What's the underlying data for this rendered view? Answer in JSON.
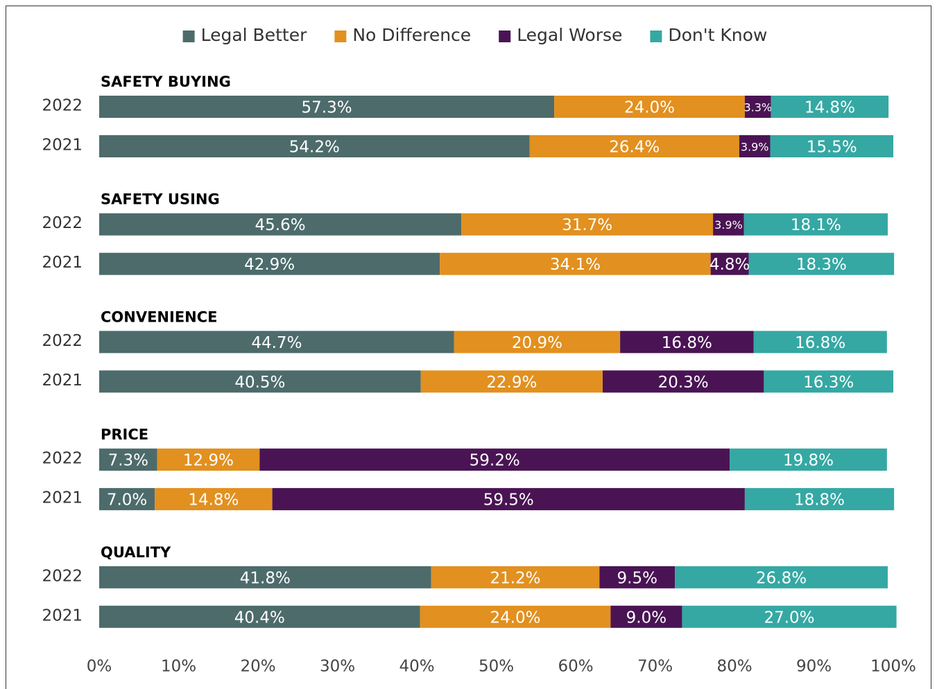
{
  "chart_data": {
    "type": "stacked-bar-horizontal",
    "groups": [
      "SAFETY BUYING",
      "SAFETY USING",
      "CONVENIENCE",
      "PRICE",
      "QUALITY"
    ],
    "categories": [
      "2022",
      "2021",
      "2022",
      "2021",
      "2022",
      "2021",
      "2022",
      "2021",
      "2022",
      "2021"
    ],
    "series": [
      {
        "name": "Legal Better",
        "color": "#4d6b6b",
        "values": [
          57.3,
          54.2,
          45.6,
          42.9,
          44.7,
          40.5,
          7.3,
          7.0,
          41.8,
          40.4
        ],
        "value_labels": [
          "57.3%",
          "54.2%",
          "45.6%",
          "42.9%",
          "44.7%",
          "40.5%",
          "7.3%",
          "7.0%",
          "41.8%",
          "40.4%"
        ]
      },
      {
        "name": "No Difference",
        "color": "#e2901f",
        "values": [
          24.0,
          26.4,
          31.7,
          34.1,
          20.9,
          22.9,
          12.9,
          14.8,
          21.2,
          24.0
        ],
        "value_labels": [
          "24.0%",
          "26.4%",
          "31.7%",
          "34.1%",
          "20.9%",
          "22.9%",
          "12.9%",
          "14.8%",
          "21.2%",
          "24.0%"
        ]
      },
      {
        "name": "Legal Worse",
        "color": "#4a1454",
        "values": [
          3.3,
          3.9,
          3.9,
          4.8,
          16.8,
          20.3,
          59.2,
          59.5,
          9.5,
          9.0
        ],
        "value_labels": [
          "3.3%",
          "3.9%",
          "3.9%",
          "4.8%",
          "16.8%",
          "20.3%",
          "59.2%",
          "59.5%",
          "9.5%",
          "9.0%"
        ]
      },
      {
        "name": "Don't Know",
        "color": "#35a8a3",
        "values": [
          14.8,
          15.5,
          18.1,
          18.3,
          16.8,
          16.3,
          19.8,
          18.8,
          26.8,
          27.0
        ],
        "value_labels": [
          "14.8%",
          "15.5%",
          "18.1%",
          "18.3%",
          "16.8%",
          "16.3%",
          "19.8%",
          "18.8%",
          "26.8%",
          "27.0%"
        ]
      }
    ],
    "xlim": [
      0,
      100
    ],
    "xticks": [
      {
        "value": 0,
        "label": "0%"
      },
      {
        "value": 10,
        "label": "10%"
      },
      {
        "value": 20,
        "label": "20%"
      },
      {
        "value": 30,
        "label": "30%"
      },
      {
        "value": 40,
        "label": "40%"
      },
      {
        "value": 50,
        "label": "50%"
      },
      {
        "value": 60,
        "label": "60%"
      },
      {
        "value": 70,
        "label": "70%"
      },
      {
        "value": 80,
        "label": "80%"
      },
      {
        "value": 90,
        "label": "90%"
      },
      {
        "value": 100,
        "label": "100%"
      }
    ],
    "legend": "top"
  }
}
